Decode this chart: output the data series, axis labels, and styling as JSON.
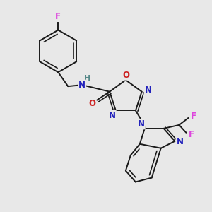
{
  "background_color": "#e8e8e8",
  "bond_color": "#1a1a1a",
  "atom_colors": {
    "F": "#dd44dd",
    "O": "#cc2222",
    "N": "#2222bb",
    "H": "#558888",
    "C": "#1a1a1a"
  },
  "figsize": [
    3.0,
    3.0
  ],
  "dpi": 100
}
